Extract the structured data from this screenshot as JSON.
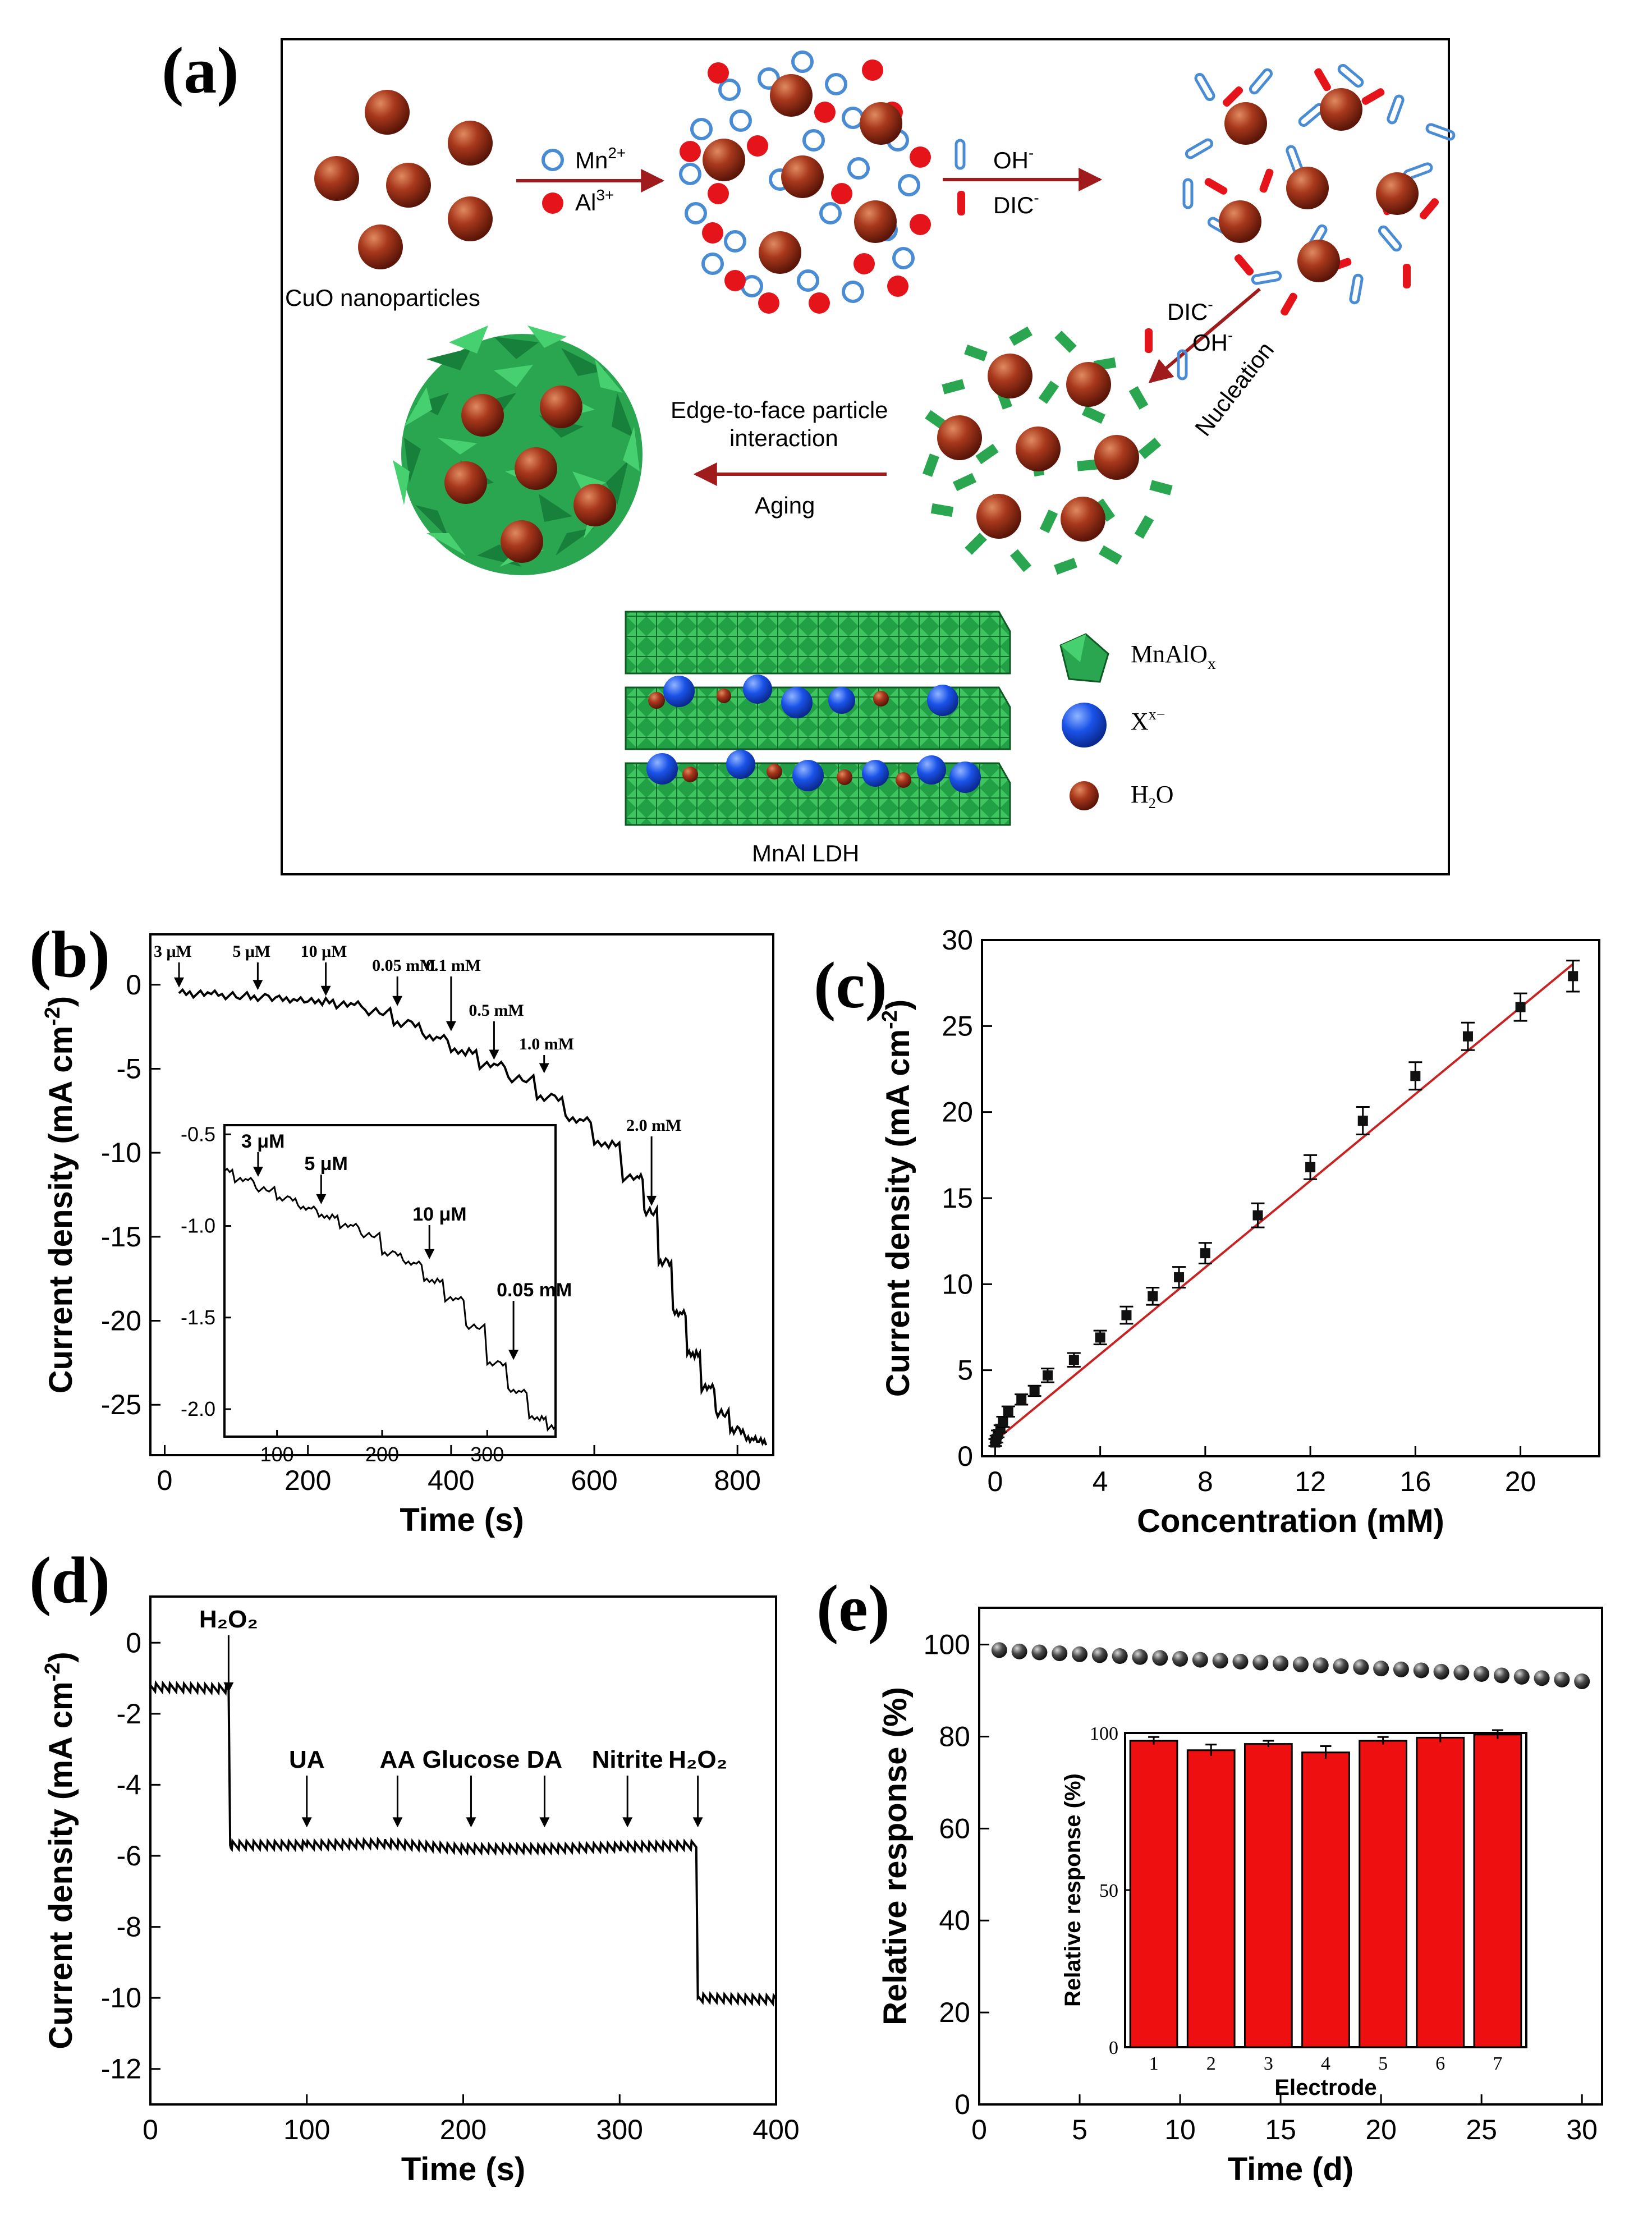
{
  "panel_labels": {
    "a": "(a)",
    "b": "(b)",
    "c": "(c)",
    "d": "(d)",
    "e": "(e)"
  },
  "colors": {
    "cuo": "#a8381c",
    "mn_ring": "#4a8cd4",
    "al": "#e5141b",
    "ldh_green": "#2aa650",
    "arrow": "#a01c1c",
    "fit_line": "#c82323",
    "bar_red": "#ee1010",
    "sphere_blue": "#1a52e8"
  },
  "diagram": {
    "cuo_label": "CuO nanoparticles",
    "mn_label": "Mn",
    "mn_sup": "2+",
    "al_label": "Al",
    "al_sup": "3+",
    "oh_label": "OH",
    "oh_sup": "-",
    "dic_label": "DIC",
    "dic_sup": "-",
    "dic2_label": "DIC",
    "dic2_sup": "-",
    "oh2_label": "OH",
    "oh2_sup": "-",
    "nucleation": "Nucleation",
    "edge_line1": "Edge-to-face particle",
    "edge_line2": "interaction",
    "aging": "Aging",
    "legend_mnalox": "MnAlO",
    "legend_mnalox_sub": "x",
    "legend_x": "X",
    "legend_x_sup": "x−",
    "legend_h2o_pre": "H",
    "legend_h2o_sub": "2",
    "legend_h2o_post": "O",
    "ldh_label": "MnAl LDH"
  },
  "chart_data": [
    {
      "id": "b",
      "type": "line",
      "xlabel": "Time (s)",
      "ylabel": "Current density (mA cm",
      "ylabel_sup": "-2",
      "ylabel_end": ")",
      "xlim": [
        -20,
        850
      ],
      "ylim": [
        -28,
        3
      ],
      "xticks": [
        0,
        200,
        400,
        600,
        800
      ],
      "yticks": [
        0,
        -5,
        -10,
        -15,
        -20,
        -25
      ],
      "series": [
        {
          "name": "i-t response",
          "x": [
            20,
            60,
            100,
            140,
            180,
            220,
            260,
            300,
            340,
            380,
            420,
            460,
            500,
            540,
            580,
            620,
            660,
            680,
            700,
            720,
            740,
            760,
            780,
            800,
            820,
            840
          ],
          "y": [
            -0.5,
            -0.55,
            -0.65,
            -0.75,
            -0.85,
            -1.0,
            -1.2,
            -1.6,
            -2.3,
            -3.1,
            -4.0,
            -4.8,
            -5.6,
            -6.7,
            -8.0,
            -9.5,
            -11.5,
            -13.5,
            -16.5,
            -19.5,
            -22.0,
            -24.0,
            -25.5,
            -26.5,
            -27.0,
            -27.2
          ]
        }
      ],
      "annotations": [
        {
          "text": "3 μM",
          "x": 20
        },
        {
          "text": "5 μM",
          "x": 130
        },
        {
          "text": "10 μM",
          "x": 225
        },
        {
          "text": "0.05 mM",
          "x": 325
        },
        {
          "text": "0.1 mM",
          "x": 400
        },
        {
          "text": "0.5 mM",
          "x": 460
        },
        {
          "text": "1.0 mM",
          "x": 530
        },
        {
          "text": "2.0 mM",
          "x": 680
        }
      ],
      "inset": {
        "xlim": [
          50,
          365
        ],
        "ylim": [
          -2.15,
          -0.45
        ],
        "xticks": [
          100,
          200,
          300
        ],
        "yticks": [
          -0.5,
          -1.0,
          -1.5,
          -2.0
        ],
        "x": [
          50,
          70,
          90,
          110,
          130,
          150,
          170,
          190,
          210,
          230,
          250,
          270,
          290,
          310,
          330,
          350,
          365
        ],
        "y": [
          -0.7,
          -0.75,
          -0.8,
          -0.85,
          -0.9,
          -0.95,
          -1.0,
          -1.05,
          -1.15,
          -1.2,
          -1.3,
          -1.4,
          -1.55,
          -1.75,
          -1.9,
          -2.05,
          -2.1
        ],
        "annotations": [
          {
            "text": "3 μM",
            "x": 82
          },
          {
            "text": "5 μM",
            "x": 142
          },
          {
            "text": "10 μM",
            "x": 245
          },
          {
            "text": "0.05 mM",
            "x": 325
          }
        ]
      }
    },
    {
      "id": "c",
      "type": "scatter",
      "xlabel": "Concentration (mM)",
      "ylabel": "Current density (mA cm",
      "ylabel_sup": "-2",
      "ylabel_end": ")",
      "xlim": [
        -0.5,
        23
      ],
      "ylim": [
        0,
        30
      ],
      "xticks": [
        0,
        4,
        8,
        12,
        16,
        20
      ],
      "yticks": [
        0,
        5,
        10,
        15,
        20,
        25,
        30
      ],
      "series": [
        {
          "name": "data",
          "x": [
            0.003,
            0.05,
            0.1,
            0.2,
            0.3,
            0.5,
            1.0,
            1.5,
            2.0,
            3.0,
            4.0,
            5.0,
            6.0,
            7.0,
            8.0,
            10.0,
            12.0,
            14.0,
            16.0,
            18.0,
            20.0,
            22.0
          ],
          "y": [
            0.8,
            1.0,
            1.3,
            1.6,
            2.0,
            2.6,
            3.3,
            3.8,
            4.7,
            5.6,
            6.9,
            8.2,
            9.3,
            10.4,
            11.8,
            14.0,
            16.8,
            19.5,
            22.1,
            24.4,
            26.1,
            27.9
          ],
          "err": [
            0.2,
            0.2,
            0.2,
            0.2,
            0.3,
            0.3,
            0.3,
            0.3,
            0.4,
            0.4,
            0.4,
            0.5,
            0.5,
            0.6,
            0.6,
            0.7,
            0.7,
            0.8,
            0.8,
            0.8,
            0.8,
            0.9
          ]
        }
      ],
      "fit": {
        "x": [
          0,
          22
        ],
        "y": [
          0.9,
          28.6
        ]
      }
    },
    {
      "id": "d",
      "type": "line",
      "xlabel": "Time (s)",
      "ylabel": "Current density (mA cm",
      "ylabel_sup": "-2",
      "ylabel_end": ")",
      "xlim": [
        0,
        400
      ],
      "ylim": [
        -13,
        1.3
      ],
      "xticks": [
        0,
        100,
        200,
        300,
        400
      ],
      "yticks": [
        0,
        -2,
        -4,
        -6,
        -8,
        -10,
        -12
      ],
      "series": [
        {
          "name": "interference",
          "x": [
            0,
            50,
            51,
            100,
            150,
            200,
            250,
            300,
            349,
            350,
            400
          ],
          "y": [
            -1.25,
            -1.3,
            -5.7,
            -5.7,
            -5.65,
            -5.8,
            -5.8,
            -5.75,
            -5.7,
            -10.0,
            -10.05
          ]
        }
      ],
      "annotations": [
        {
          "text": "H₂O₂",
          "x": 50,
          "upper": true
        },
        {
          "text": "UA",
          "x": 100
        },
        {
          "text": "AA",
          "x": 158
        },
        {
          "text": "Glucose",
          "x": 205
        },
        {
          "text": "DA",
          "x": 252
        },
        {
          "text": "Nitrite",
          "x": 305
        },
        {
          "text": "H₂O₂",
          "x": 350
        }
      ]
    },
    {
      "id": "e",
      "type": "scatter",
      "xlabel": "Time (d)",
      "ylabel": "Relative response (%)",
      "xlim": [
        0,
        31
      ],
      "ylim": [
        0,
        108
      ],
      "xticks": [
        0,
        5,
        10,
        15,
        20,
        25,
        30
      ],
      "yticks": [
        0,
        20,
        40,
        60,
        80,
        100
      ],
      "series": [
        {
          "name": "stability",
          "x": [
            1,
            2,
            3,
            4,
            5,
            6,
            7,
            8,
            9,
            10,
            11,
            12,
            13,
            14,
            15,
            16,
            17,
            18,
            19,
            20,
            21,
            22,
            23,
            24,
            25,
            26,
            27,
            28,
            29,
            30
          ],
          "y": [
            98.8,
            98.5,
            98.3,
            98.1,
            97.9,
            97.7,
            97.5,
            97.3,
            97.1,
            96.9,
            96.7,
            96.5,
            96.3,
            96.1,
            95.9,
            95.7,
            95.5,
            95.3,
            95.1,
            94.8,
            94.6,
            94.4,
            94.1,
            93.9,
            93.6,
            93.3,
            93.0,
            92.7,
            92.4,
            92.0
          ]
        }
      ],
      "inset": {
        "type": "bar",
        "xlabel": "Electrode",
        "ylabel": "Relative response (%)",
        "categories": [
          "1",
          "2",
          "3",
          "4",
          "5",
          "6",
          "7"
        ],
        "values": [
          97.5,
          94.5,
          96.5,
          93.8,
          97.5,
          98.5,
          99.5
        ],
        "err": [
          1.2,
          1.8,
          1.0,
          2.0,
          1.2,
          1.5,
          1.4
        ],
        "ylim": [
          0,
          100
        ],
        "yticks": [
          0,
          50,
          100
        ]
      }
    }
  ]
}
